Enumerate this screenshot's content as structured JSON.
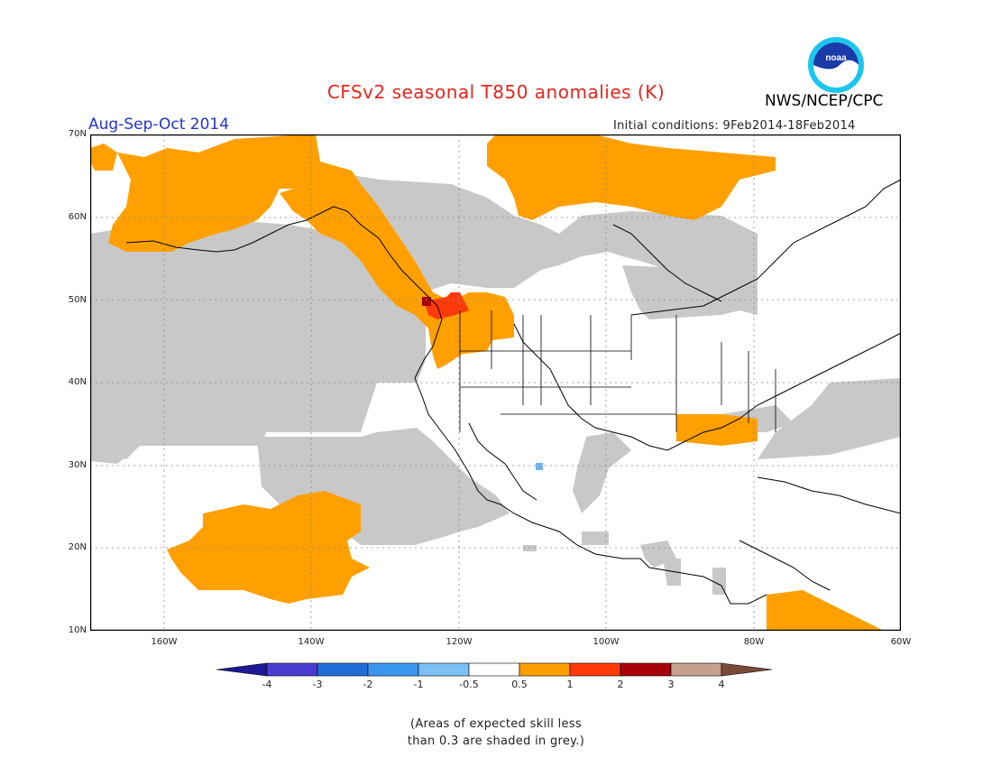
{
  "header": {
    "title": "CFSv2 seasonal T850 anomalies (K)",
    "period": "Aug-Sep-Oct 2014",
    "initial_conditions": "Initial conditions: 9Feb2014-18Feb2014",
    "agency": "NWS/NCEP/CPC",
    "logo_text": "noaa"
  },
  "map": {
    "lat_ticks": [
      "70N",
      "60N",
      "50N",
      "40N",
      "30N",
      "20N",
      "10N"
    ],
    "lon_ticks": [
      "160W",
      "140W",
      "120W",
      "100W",
      "80W",
      "60W"
    ],
    "region": "North America / NE Pacific",
    "colors": {
      "grey_low_skill": "#c8c8c8",
      "orange_0.5_1": "#ffa000",
      "red_1_2": "#ff3a0a",
      "dark_red_2_3": "#a8000a",
      "light_blue": "#73b4f0",
      "coast": "#000000"
    }
  },
  "colorbar": {
    "labels": [
      "-4",
      "-3",
      "-2",
      "-1",
      "-0.5",
      "0.5",
      "1",
      "2",
      "3",
      "4"
    ],
    "colors": [
      "#1e1896",
      "#4a3bd0",
      "#1f6ed6",
      "#3b98f0",
      "#7cc0f5",
      "#ffffff",
      "#ffa000",
      "#ff3a0a",
      "#a8000a",
      "#c8a090",
      "#7a4a3a"
    ]
  },
  "note": {
    "line1": "(Areas of expected skill less",
    "line2": "than 0.3 are shaded in grey.)"
  }
}
